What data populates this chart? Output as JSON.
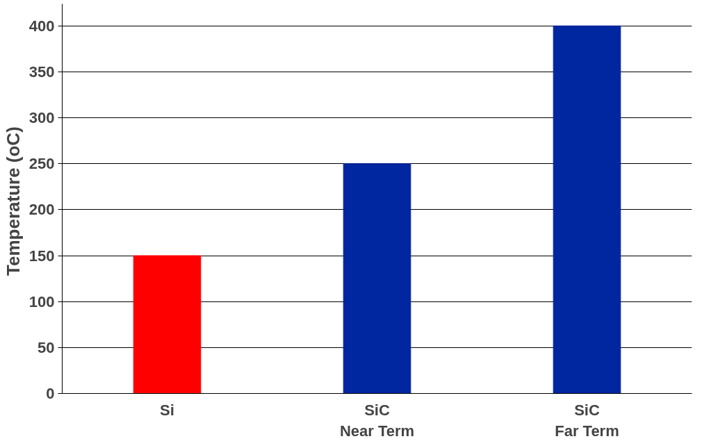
{
  "chart_data": {
    "type": "bar",
    "ylabel": "Temperature  (oC)",
    "categories": [
      "Si",
      "SiC\nNear Term",
      "SiC\nFar Term"
    ],
    "values": [
      150,
      250,
      400
    ],
    "colors": [
      "#ff0000",
      "#0026a0",
      "#0026a0"
    ],
    "ylim": [
      0,
      400
    ],
    "yticks": [
      0,
      50,
      100,
      150,
      200,
      250,
      300,
      350,
      400
    ],
    "grid": "y"
  }
}
